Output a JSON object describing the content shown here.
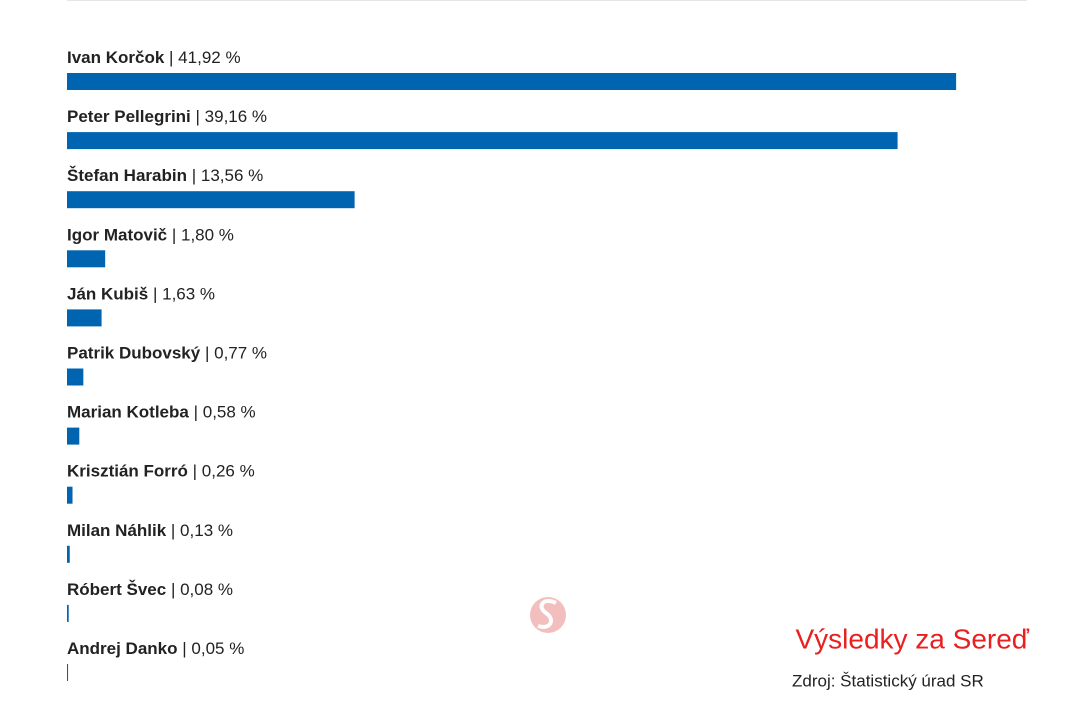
{
  "chart_data": {
    "type": "bar",
    "orientation": "horizontal",
    "title": "Výsledky za Sereď",
    "source": "Zdroj: Štatistický úrad SR",
    "categories": [
      "Ivan Korčok",
      "Peter Pellegrini",
      "Štefan Harabin",
      "Igor Matovič",
      "Ján Kubiš",
      "Patrik Dubovský",
      "Marian Kotleba",
      "Krisztián Forró",
      "Milan Náhlik",
      "Róbert Švec",
      "Andrej Danko"
    ],
    "values": [
      41.92,
      39.16,
      13.56,
      1.8,
      1.63,
      0.77,
      0.58,
      0.26,
      0.13,
      0.08,
      0.05
    ],
    "value_labels": [
      "| 41,92 %",
      "| 39,16 %",
      "| 13,56 %",
      "| 1,80 %",
      "| 1,63 %",
      "| 0,77 %",
      "| 0,58 %",
      "| 0,26 %",
      "| 0,13 %",
      "| 0,08 %",
      "| 0,05 %"
    ],
    "color": "#0064b1"
  }
}
